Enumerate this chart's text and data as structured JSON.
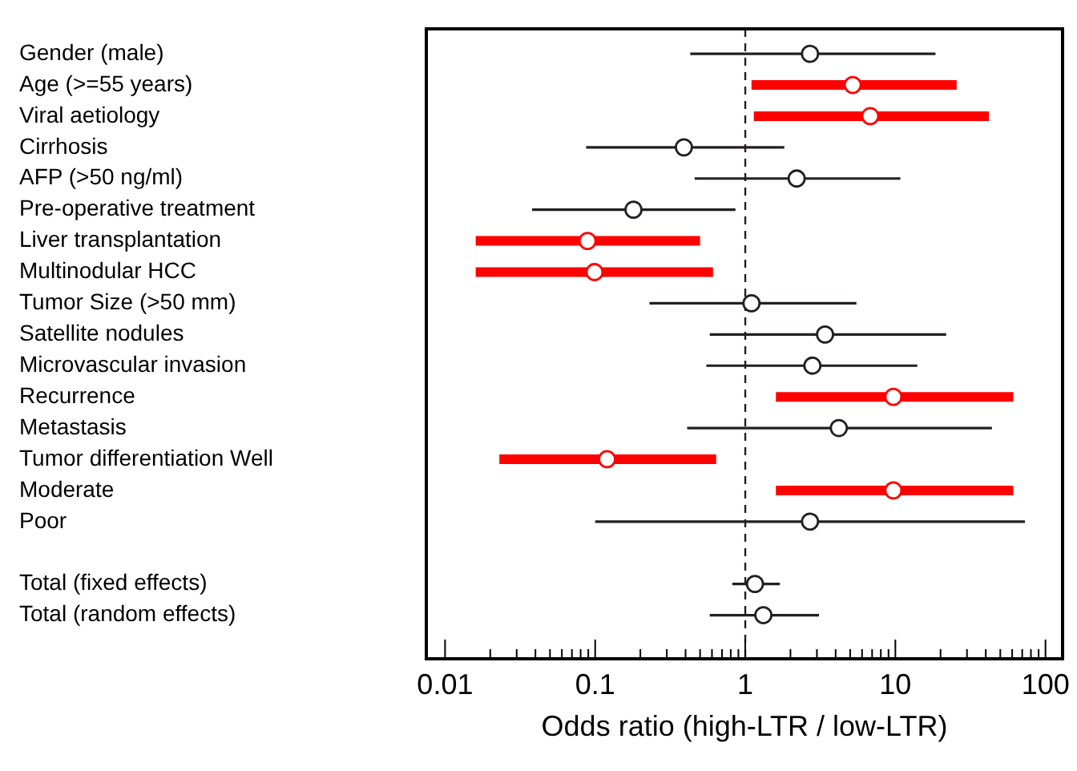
{
  "chart_data": {
    "type": "scatter",
    "orientation": "horizontal",
    "xlabel": "Odds ratio (high-LTR / low-LTR)",
    "categories": [
      "Gender (male)",
      "Age (>=55 years)",
      "Viral aetiology",
      "Cirrhosis",
      "AFP (>50 ng/ml)",
      "Pre-operative treatment",
      "Liver transplantation",
      "Multinodular HCC",
      "Tumor Size (>50 mm)",
      "Satellite nodules",
      "Microvascular invasion",
      "Recurrence",
      "Metastasis",
      "Tumor differentiation Well",
      "Moderate",
      "Poor",
      null,
      "Total (fixed effects)",
      "Total (random effects)"
    ],
    "series": [
      {
        "color": "#ff0000",
        "values": [
          null,
          5.2,
          6.8,
          null,
          null,
          null,
          0.089,
          0.099,
          null,
          null,
          null,
          9.7,
          null,
          0.12,
          9.7,
          null,
          null,
          null,
          null
        ],
        "errors": [
          null,
          [
            1.1,
            25.6
          ],
          [
            1.14,
            42
          ],
          null,
          null,
          null,
          [
            0.016,
            0.5
          ],
          [
            0.016,
            0.61
          ],
          null,
          null,
          null,
          [
            1.6,
            61
          ],
          null,
          [
            0.023,
            0.64
          ],
          [
            1.6,
            61
          ],
          null,
          null,
          null,
          null
        ]
      },
      {
        "color": "#231f20",
        "values": [
          2.7,
          null,
          null,
          0.39,
          2.2,
          0.18,
          null,
          null,
          1.1,
          3.4,
          2.8,
          null,
          4.2,
          null,
          null,
          2.7,
          null,
          1.16,
          1.32
        ],
        "errors": [
          [
            0.43,
            18.5
          ],
          null,
          null,
          [
            0.087,
            1.82
          ],
          [
            0.46,
            10.8
          ],
          [
            0.038,
            0.86
          ],
          null,
          null,
          [
            0.23,
            5.5
          ],
          [
            0.58,
            21.8
          ],
          [
            0.55,
            14
          ],
          null,
          [
            0.41,
            44
          ],
          null,
          null,
          [
            0.1,
            73
          ],
          null,
          [
            0.82,
            1.7
          ],
          [
            0.58,
            3.1
          ]
        ]
      }
    ],
    "log": "x",
    "xlim": [
      0.0075,
      130
    ],
    "xticks": [
      0.01,
      {
        "value": 0.02,
        "label": null
      },
      {
        "value": 0.03,
        "label": null
      },
      {
        "value": 0.04,
        "label": null
      },
      {
        "value": 0.05,
        "label": null
      },
      {
        "value": 0.06,
        "label": null
      },
      {
        "value": 0.07,
        "label": null
      },
      {
        "value": 0.08,
        "label": null
      },
      {
        "value": 0.09,
        "label": null
      },
      0.1,
      {
        "value": 0.2,
        "label": null
      },
      {
        "value": 0.3,
        "label": null
      },
      {
        "value": 0.4,
        "label": null
      },
      {
        "value": 0.5,
        "label": null
      },
      {
        "value": 0.6,
        "label": null
      },
      {
        "value": 0.7,
        "label": null
      },
      {
        "value": 0.8,
        "label": null
      },
      {
        "value": 0.9,
        "label": null
      },
      1,
      {
        "value": 2,
        "label": null
      },
      {
        "value": 3,
        "label": null
      },
      {
        "value": 4,
        "label": null
      },
      {
        "value": 5,
        "label": null
      },
      {
        "value": 6,
        "label": null
      },
      {
        "value": 7,
        "label": null
      },
      {
        "value": 8,
        "label": null
      },
      {
        "value": 9,
        "label": null
      },
      10,
      {
        "value": 20,
        "label": null
      },
      {
        "value": 30,
        "label": null
      },
      {
        "value": 40,
        "label": null
      },
      {
        "value": 50,
        "label": null
      },
      {
        "value": 60,
        "label": null
      },
      {
        "value": 70,
        "label": null
      },
      {
        "value": 80,
        "label": null
      },
      {
        "value": 90,
        "label": null
      },
      100
    ],
    "ref_lines": [
      {
        "axis": "x",
        "value": 1,
        "line_style": "dashed",
        "color": "#231f20"
      }
    ],
    "marker": "circle",
    "grid": false,
    "legend": false
  }
}
